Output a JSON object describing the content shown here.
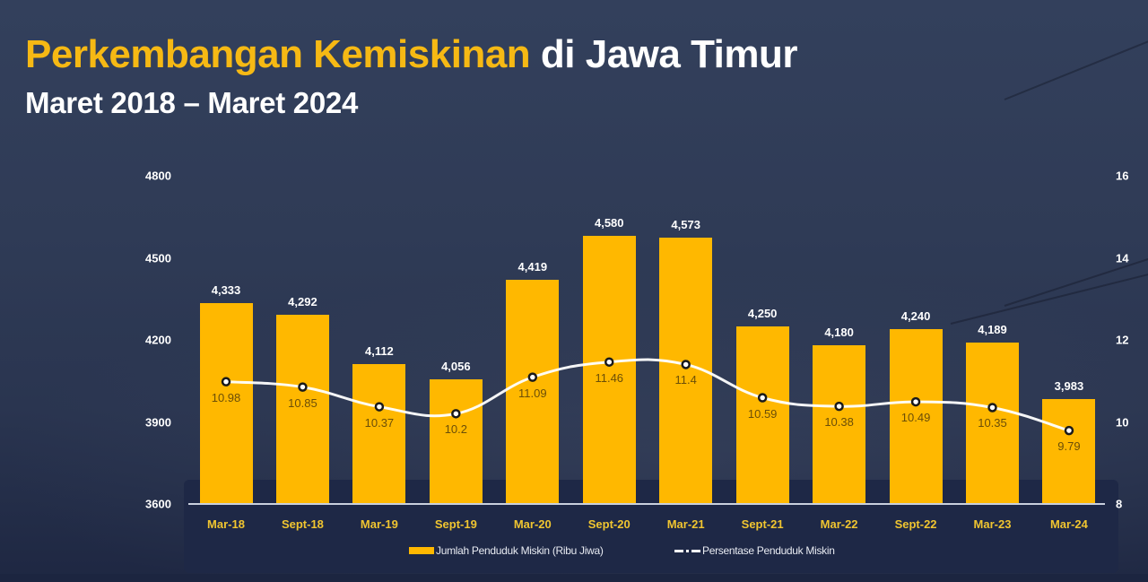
{
  "header": {
    "title_highlight": "Perkembangan Kemiskinan",
    "title_rest": " di Jawa Timur",
    "subtitle": "Maret 2018 – Maret 2024"
  },
  "colors": {
    "bar": "#ffb800",
    "title_highlight": "#f6b914",
    "line": "#ffffff",
    "xtick": "#f0c530",
    "background": "#2f3b56",
    "panel": "#1e2846"
  },
  "axes": {
    "left_ticks": [
      "4800",
      "4500",
      "4200",
      "3900",
      "3600"
    ],
    "right_ticks": [
      "16",
      "14",
      "12",
      "10",
      "8"
    ]
  },
  "legend": {
    "bar_label": "Jumlah Penduduk Miskin (Ribu Jiwa)",
    "line_label": "Persentase Penduduk Miskin"
  },
  "chart_data": {
    "type": "bar",
    "title": "Perkembangan Kemiskinan di Jawa Timur",
    "subtitle": "Maret 2018 – Maret 2024",
    "categories": [
      "Mar-18",
      "Sept-18",
      "Mar-19",
      "Sept-19",
      "Mar-20",
      "Sept-20",
      "Mar-21",
      "Sept-21",
      "Mar-22",
      "Sept-22",
      "Mar-23",
      "Mar-24"
    ],
    "series": [
      {
        "name": "Jumlah Penduduk Miskin (Ribu Jiwa)",
        "type": "bar",
        "axis": "left",
        "values": [
          4333,
          4292,
          4112,
          4056,
          4419,
          4580,
          4573,
          4250,
          4180,
          4240,
          4189,
          3983
        ],
        "labels": [
          "4,333",
          "4,292",
          "4,112",
          "4,056",
          "4,419",
          "4,580",
          "4,573",
          "4,250",
          "4,180",
          "4,240",
          "4,189",
          "3,983"
        ]
      },
      {
        "name": "Persentase Penduduk Miskin",
        "type": "line",
        "axis": "right",
        "values": [
          10.98,
          10.85,
          10.37,
          10.2,
          11.09,
          11.46,
          11.4,
          10.59,
          10.38,
          10.49,
          10.35,
          9.79
        ],
        "labels": [
          "10.98",
          "10.85",
          "10.37",
          "10.2",
          "11.09",
          "11.46",
          "11.4",
          "10.59",
          "10.38",
          "10.49",
          "10.35",
          "9.79"
        ]
      }
    ],
    "xlabel": "",
    "ylabel": "",
    "ylim": [
      3600,
      4800
    ],
    "y2lim": [
      8,
      16
    ],
    "yticks": [
      3600,
      3900,
      4200,
      4500,
      4800
    ],
    "y2ticks": [
      8,
      10,
      12,
      14,
      16
    ],
    "grid": false,
    "legend_position": "bottom"
  }
}
